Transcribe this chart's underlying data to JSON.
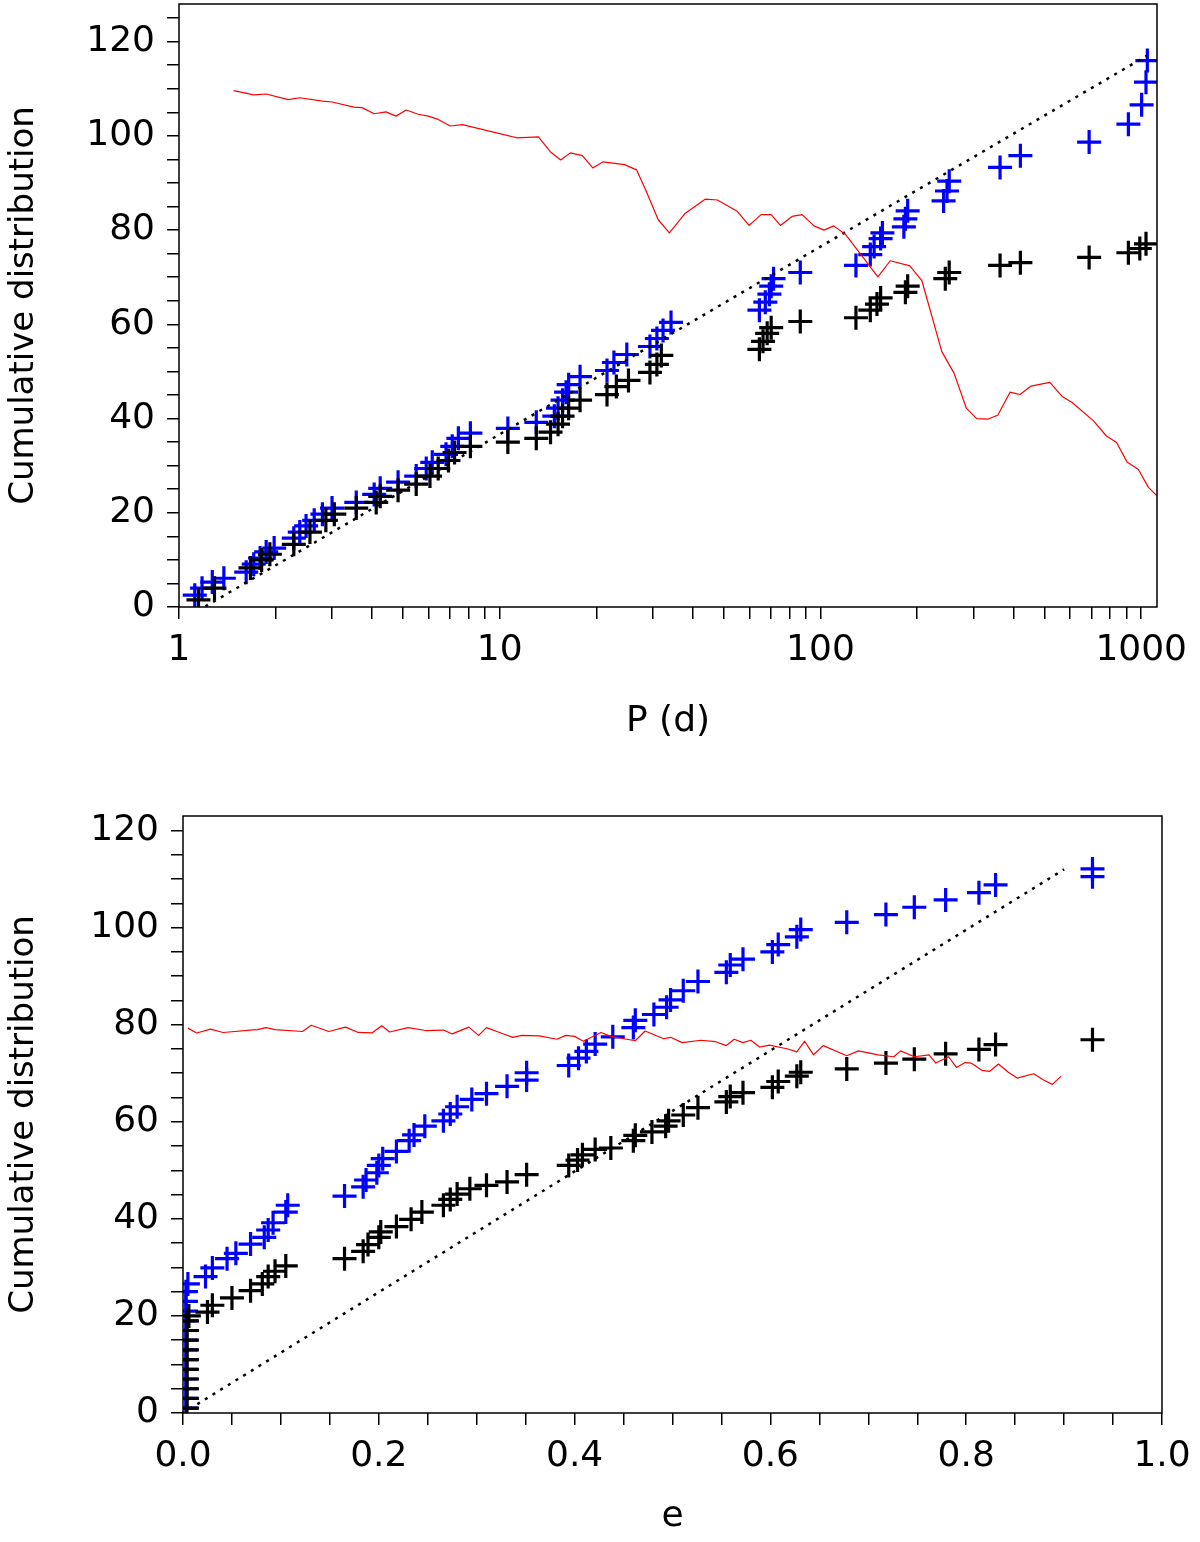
{
  "chart_data": [
    {
      "type": "scatter",
      "xlabel": "P (d)",
      "ylabel": "Cumulative distribution",
      "log": "x",
      "xlim": [
        1,
        1120
      ],
      "ylim": [
        0,
        128
      ],
      "xticks": [
        1,
        {
          "value": 2,
          "label": null
        },
        {
          "value": 3,
          "label": null
        },
        {
          "value": 4,
          "label": null
        },
        {
          "value": 5,
          "label": null
        },
        {
          "value": 6,
          "label": null
        },
        {
          "value": 7,
          "label": null
        },
        {
          "value": 8,
          "label": null
        },
        {
          "value": 9,
          "label": null
        },
        10,
        {
          "value": 20,
          "label": null
        },
        {
          "value": 30,
          "label": null
        },
        {
          "value": 40,
          "label": null
        },
        {
          "value": 50,
          "label": null
        },
        {
          "value": 60,
          "label": null
        },
        {
          "value": 70,
          "label": null
        },
        {
          "value": 80,
          "label": null
        },
        {
          "value": 90,
          "label": null
        },
        100,
        {
          "value": 200,
          "label": null
        },
        {
          "value": 300,
          "label": null
        },
        {
          "value": 400,
          "label": null
        },
        {
          "value": 500,
          "label": null
        },
        {
          "value": 600,
          "label": null
        },
        {
          "value": 700,
          "label": null
        },
        {
          "value": 800,
          "label": null
        },
        {
          "value": 900,
          "label": null
        },
        1000
      ],
      "yticks": [
        0,
        {
          "value": 5,
          "label": null
        },
        {
          "value": 10,
          "label": null
        },
        {
          "value": 15,
          "label": null
        },
        20,
        {
          "value": 25,
          "label": null
        },
        {
          "value": 30,
          "label": null
        },
        {
          "value": 35,
          "label": null
        },
        40,
        {
          "value": 45,
          "label": null
        },
        {
          "value": 50,
          "label": null
        },
        {
          "value": 55,
          "label": null
        },
        60,
        {
          "value": 65,
          "label": null
        },
        {
          "value": 70,
          "label": null
        },
        {
          "value": 75,
          "label": null
        },
        80,
        {
          "value": 85,
          "label": null
        },
        {
          "value": 90,
          "label": null
        },
        {
          "value": 95,
          "label": null
        },
        100,
        {
          "value": 105,
          "label": null
        },
        {
          "value": 110,
          "label": null
        },
        {
          "value": 115,
          "label": null
        },
        120,
        {
          "value": 125,
          "label": null
        }
      ],
      "series": [
        {
          "type": "line",
          "color": "#ff0000",
          "marker": "none",
          "line_style": "solid",
          "x": [
            1.48,
            1.71,
            1.87,
            2.19,
            2.38,
            2.8,
            3.0,
            3.51,
            3.72,
            4.06,
            4.42,
            4.75,
            5.11,
            5.57,
            5.99,
            6.43,
            7.01,
            7.65,
            11.3,
            13.2,
            14.4,
            15.5,
            16.6,
            18.1,
            19.5,
            21.0,
            24.5,
            26.7,
            28.6,
            31.2,
            33.8,
            37.9,
            43.8,
            47.7,
            55.0,
            59.9,
            65.3,
            70.2,
            75.0,
            81.5,
            87.6,
            95.5,
            102.6,
            110,
            120,
            131,
            151,
            165,
            190,
            207,
            239,
            261,
            285,
            307,
            333,
            357,
            390,
            419,
            453,
            519,
            567,
            609,
            710,
            779,
            838,
            903,
            980,
            1053,
            1120
          ],
          "values": [
            109.6,
            108.7,
            108.9,
            107.7,
            108.1,
            107.4,
            107.2,
            106.1,
            106.0,
            104.7,
            105.1,
            104.2,
            105.5,
            104.6,
            104.2,
            103.5,
            102.1,
            102.4,
            99.6,
            99.8,
            96.6,
            94.9,
            96.4,
            95.8,
            93.2,
            94.5,
            93.9,
            92.8,
            88.3,
            82.2,
            79.4,
            83.6,
            86.6,
            86.4,
            84.0,
            81.0,
            83.3,
            83.3,
            81.0,
            82.9,
            83.3,
            80.9,
            80.0,
            80.9,
            79.0,
            75.6,
            70.1,
            73.5,
            72.4,
            69.3,
            54.2,
            49.6,
            42.2,
            40.0,
            39.9,
            40.7,
            45.6,
            45.1,
            46.9,
            47.7,
            44.7,
            43.4,
            39.5,
            36.3,
            34.9,
            30.8,
            29.2,
            25.4,
            23.6
          ]
        },
        {
          "type": "line",
          "color": "#000000",
          "marker": "none",
          "line_style": "dotted",
          "x": [
            1.2,
            1040
          ],
          "values": [
            0,
            117
          ]
        },
        {
          "type": "scatter",
          "color": "#000000",
          "marker": "cross",
          "x": [
            1.15,
            1.29,
            1.67,
            1.81,
            1.92,
            2.28,
            2.56,
            2.87,
            3.05,
            3.57,
            4.12,
            4.24,
            4.82,
            5.49,
            6.06,
            6.43,
            6.92,
            7.23,
            8.1,
            10.6,
            13.0,
            14.4,
            15.2,
            15.7,
            16.4,
            17.8,
            21.6,
            23.1,
            25.2,
            29.4,
            30.9,
            31.9,
            64.5,
            66.2,
            68.2,
            70.2,
            86.5,
            129,
            143,
            150,
            154,
            184,
            187,
            245,
            252,
            363,
            420,
            688,
            912,
            990,
            1035
          ],
          "values": [
            1.5,
            4.0,
            8.3,
            10.0,
            11.2,
            13.3,
            15.9,
            18.4,
            19.7,
            21.0,
            22.2,
            23.5,
            24.8,
            26.1,
            27.8,
            29.4,
            31.1,
            32.8,
            34.1,
            35.0,
            35.8,
            37.1,
            38.8,
            40.5,
            42.2,
            43.9,
            45.1,
            46.8,
            48.1,
            49.8,
            51.5,
            53.4,
            54.7,
            56.4,
            58.1,
            59.3,
            60.6,
            61.4,
            63.0,
            64.3,
            65.6,
            66.8,
            68.1,
            69.7,
            71.0,
            72.5,
            73.1,
            74.2,
            75.2,
            76.1,
            77.1
          ]
        },
        {
          "type": "scatter",
          "color": "#0000ff",
          "marker": "cross",
          "x": [
            1.12,
            1.18,
            1.27,
            1.38,
            1.62,
            1.71,
            1.79,
            1.87,
            1.98,
            2.28,
            2.38,
            2.49,
            2.64,
            2.8,
            3.0,
            3.57,
            4.06,
            4.24,
            4.82,
            5.49,
            5.9,
            6.16,
            6.8,
            7.11,
            7.43,
            8.1,
            10.6,
            13.0,
            14.8,
            15.2,
            15.7,
            16.1,
            16.4,
            17.8,
            21.6,
            22.7,
            24.9,
            29.4,
            30.9,
            32.3,
            34.2,
            64.5,
            67.3,
            69.3,
            70.2,
            71.4,
            86.5,
            129,
            143,
            147,
            154,
            156,
            182,
            184,
            187,
            242,
            248,
            252,
            363,
            420,
            688,
            912,
            1003,
            1035,
            1045
          ],
          "values": [
            2.5,
            4.0,
            5.3,
            6.1,
            7.4,
            9.1,
            10.4,
            11.7,
            12.5,
            14.6,
            15.9,
            17.2,
            18.4,
            19.7,
            21.0,
            22.2,
            23.9,
            25.2,
            26.5,
            27.8,
            29.4,
            30.7,
            32.4,
            34.1,
            35.8,
            36.9,
            37.9,
            39.2,
            40.5,
            42.2,
            43.9,
            45.6,
            47.2,
            48.9,
            50.2,
            51.9,
            53.6,
            55.3,
            57.0,
            58.7,
            60.4,
            63.0,
            64.7,
            66.4,
            68.1,
            69.7,
            71.0,
            72.5,
            74.8,
            76.5,
            78.2,
            79.4,
            80.7,
            82.4,
            84.1,
            86.2,
            88.3,
            90.4,
            93.3,
            95.8,
            98.7,
            102.5,
            106.6,
            111.4,
            116.0
          ]
        }
      ]
    },
    {
      "type": "scatter",
      "xlabel": "e",
      "ylabel": "Cumulative distribution",
      "xlim": [
        0,
        1
      ],
      "ylim": [
        0,
        123
      ],
      "xticks": [
        {
          "value": 0,
          "label": "0.0"
        },
        {
          "value": 0.05,
          "label": null
        },
        {
          "value": 0.1,
          "label": null
        },
        {
          "value": 0.15,
          "label": null
        },
        {
          "value": 0.2,
          "label": "0.2"
        },
        {
          "value": 0.25,
          "label": null
        },
        {
          "value": 0.3,
          "label": null
        },
        {
          "value": 0.35,
          "label": null
        },
        {
          "value": 0.4,
          "label": "0.4"
        },
        {
          "value": 0.45,
          "label": null
        },
        {
          "value": 0.5,
          "label": null
        },
        {
          "value": 0.55,
          "label": null
        },
        {
          "value": 0.6,
          "label": "0.6"
        },
        {
          "value": 0.65,
          "label": null
        },
        {
          "value": 0.7,
          "label": null
        },
        {
          "value": 0.75,
          "label": null
        },
        {
          "value": 0.8,
          "label": "0.8"
        },
        {
          "value": 0.85,
          "label": null
        },
        {
          "value": 0.9,
          "label": null
        },
        {
          "value": 0.95,
          "label": null
        },
        {
          "value": 1,
          "label": "1.0"
        }
      ],
      "yticks": [
        0,
        {
          "value": 5,
          "label": null
        },
        {
          "value": 10,
          "label": null
        },
        {
          "value": 15,
          "label": null
        },
        20,
        {
          "value": 25,
          "label": null
        },
        {
          "value": 30,
          "label": null
        },
        {
          "value": 35,
          "label": null
        },
        40,
        {
          "value": 45,
          "label": null
        },
        {
          "value": 50,
          "label": null
        },
        {
          "value": 55,
          "label": null
        },
        60,
        {
          "value": 65,
          "label": null
        },
        {
          "value": 70,
          "label": null
        },
        {
          "value": 75,
          "label": null
        },
        80,
        {
          "value": 85,
          "label": null
        },
        {
          "value": 90,
          "label": null
        },
        {
          "value": 95,
          "label": null
        },
        100,
        {
          "value": 105,
          "label": null
        },
        {
          "value": 110,
          "label": null
        },
        {
          "value": 115,
          "label": null
        },
        120
      ],
      "series": [
        {
          "type": "line",
          "color": "#ff0000",
          "marker": "none",
          "line_style": "solid",
          "x": [
            0.005,
            0.014,
            0.028,
            0.041,
            0.076,
            0.085,
            0.094,
            0.122,
            0.131,
            0.149,
            0.166,
            0.179,
            0.193,
            0.203,
            0.211,
            0.23,
            0.248,
            0.266,
            0.275,
            0.292,
            0.302,
            0.31,
            0.322,
            0.337,
            0.346,
            0.364,
            0.382,
            0.391,
            0.4,
            0.409,
            0.427,
            0.437,
            0.462,
            0.472,
            0.491,
            0.498,
            0.51,
            0.529,
            0.544,
            0.555,
            0.563,
            0.572,
            0.58,
            0.589,
            0.599,
            0.618,
            0.627,
            0.635,
            0.644,
            0.654,
            0.678,
            0.69,
            0.71,
            0.726,
            0.733,
            0.747,
            0.762,
            0.769,
            0.782,
            0.79,
            0.799,
            0.805,
            0.816,
            0.824,
            0.833,
            0.843,
            0.852,
            0.869,
            0.879,
            0.888,
            0.897
          ],
          "values": [
            79.3,
            78.3,
            79.1,
            78.4,
            79.0,
            79.4,
            79.0,
            78.6,
            79.9,
            78.6,
            79.5,
            78.4,
            78.3,
            79.8,
            78.5,
            79.4,
            78.8,
            78.9,
            78.1,
            79.5,
            77.8,
            79.4,
            78.5,
            77.4,
            77.8,
            77.7,
            77.0,
            77.8,
            77.6,
            76.6,
            78.4,
            77.6,
            76.7,
            78.7,
            77.1,
            77.4,
            76.3,
            76.8,
            76.5,
            75.7,
            77.0,
            76.3,
            76.8,
            75.4,
            75.8,
            75.0,
            74.4,
            76.6,
            73.8,
            75.7,
            73.6,
            74.6,
            73.8,
            73.4,
            74.6,
            73.4,
            73.8,
            72.1,
            73.4,
            71.2,
            72.2,
            72.1,
            70.6,
            70.4,
            71.9,
            70.2,
            69.0,
            69.9,
            68.6,
            67.7,
            69.4
          ]
        },
        {
          "type": "line",
          "color": "#000000",
          "marker": "none",
          "line_style": "dotted",
          "x": [
            0,
            0.9
          ],
          "values": [
            0,
            112
          ]
        },
        {
          "type": "scatter",
          "color": "#000000",
          "marker": "cross",
          "x": [
            0.004,
            0.004,
            0.004,
            0.004,
            0.004,
            0.004,
            0.004,
            0.004,
            0.004,
            0.004,
            0.006,
            0.025,
            0.03,
            0.05,
            0.069,
            0.081,
            0.087,
            0.094,
            0.105,
            0.165,
            0.184,
            0.189,
            0.2,
            0.202,
            0.218,
            0.233,
            0.244,
            0.266,
            0.273,
            0.28,
            0.293,
            0.31,
            0.331,
            0.351,
            0.394,
            0.403,
            0.408,
            0.421,
            0.437,
            0.46,
            0.462,
            0.479,
            0.493,
            0.496,
            0.511,
            0.526,
            0.555,
            0.559,
            0.572,
            0.602,
            0.608,
            0.627,
            0.631,
            0.678,
            0.718,
            0.747,
            0.779,
            0.813,
            0.83,
            0.929
          ],
          "values": [
            1,
            3,
            5,
            7,
            9,
            11,
            13,
            15,
            17,
            19,
            20.0,
            20.8,
            22.2,
            23.7,
            25.2,
            26.6,
            28.1,
            29.2,
            30.3,
            31.8,
            33.3,
            34.7,
            36.2,
            37.3,
            38.4,
            39.9,
            41.4,
            42.8,
            44.0,
            45.1,
            46.2,
            46.9,
            47.6,
            49.1,
            51.0,
            52.1,
            53.2,
            54.3,
            54.6,
            56.1,
            57.2,
            57.9,
            59.1,
            60.2,
            61.4,
            62.9,
            64.1,
            65.2,
            66.0,
            67.1,
            68.3,
            69.4,
            70.2,
            70.9,
            72.1,
            72.9,
            74.0,
            74.9,
            75.9,
            76.9
          ]
        },
        {
          "type": "scatter",
          "color": "#0000ff",
          "marker": "cross",
          "x": [
            0.003,
            0.003,
            0.003,
            0.003,
            0.003,
            0.003,
            0.003,
            0.003,
            0.003,
            0.003,
            0.003,
            0.003,
            0.003,
            0.005,
            0.023,
            0.03,
            0.045,
            0.054,
            0.069,
            0.083,
            0.087,
            0.092,
            0.105,
            0.107,
            0.165,
            0.184,
            0.187,
            0.198,
            0.2,
            0.204,
            0.218,
            0.231,
            0.236,
            0.247,
            0.266,
            0.273,
            0.28,
            0.295,
            0.31,
            0.331,
            0.351,
            0.351,
            0.394,
            0.404,
            0.412,
            0.421,
            0.439,
            0.46,
            0.462,
            0.481,
            0.494,
            0.498,
            0.511,
            0.526,
            0.555,
            0.559,
            0.572,
            0.602,
            0.608,
            0.627,
            0.631,
            0.678,
            0.718,
            0.747,
            0.779,
            0.813,
            0.83,
            0.929,
            0.929
          ],
          "values": [
            1,
            3,
            5,
            7,
            9,
            11,
            13,
            15,
            17,
            19,
            21,
            23,
            25,
            26.6,
            28.1,
            29.9,
            31.8,
            32.9,
            34.8,
            36.2,
            37.7,
            39.2,
            41.4,
            42.8,
            44.7,
            46.6,
            48.0,
            49.5,
            51.0,
            52.4,
            53.9,
            56.1,
            57.3,
            59.1,
            60.2,
            61.6,
            63.1,
            64.6,
            65.8,
            67.3,
            68.6,
            70.1,
            71.6,
            73.1,
            74.5,
            76.0,
            77.5,
            79.4,
            80.9,
            82.1,
            83.6,
            85.1,
            87.0,
            88.9,
            90.8,
            92.3,
            93.5,
            95.0,
            96.5,
            98.1,
            99.6,
            101.1,
            102.7,
            104.2,
            105.7,
            107.2,
            108.8,
            110.5,
            112.1
          ]
        }
      ]
    }
  ]
}
